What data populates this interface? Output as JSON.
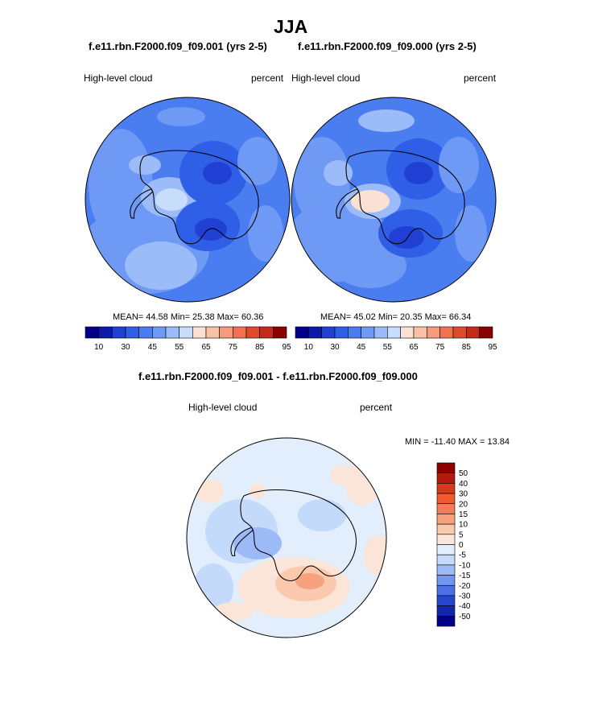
{
  "figure": {
    "title": "JJA"
  },
  "panels": [
    {
      "title": "f.e11.rbn.F2000.f09_f09.001 (yrs 2-5)",
      "field_label": "High-level cloud",
      "unit_label": "percent",
      "stats": "MEAN=  44.58  Min=  25.38  Max=  60.36",
      "colorbar_ticks": [
        "10",
        "30",
        "45",
        "55",
        "65",
        "75",
        "85",
        "95"
      ]
    },
    {
      "title": "f.e11.rbn.F2000.f09_f09.000 (yrs 2-5)",
      "field_label": "High-level cloud",
      "unit_label": "percent",
      "stats": "MEAN=  45.02  Min=  20.35  Max=  66.34",
      "colorbar_ticks": [
        "10",
        "30",
        "45",
        "55",
        "65",
        "75",
        "85",
        "95"
      ]
    }
  ],
  "difference": {
    "title": "f.e11.rbn.F2000.f09_f09.001 - f.e11.rbn.F2000.f09_f09.000",
    "field_label": "High-level cloud",
    "unit_label": "percent",
    "minmax": "MIN = -11.40 MAX =  13.84",
    "colorbar_ticks": [
      "50",
      "40",
      "30",
      "20",
      "15",
      "10",
      "5",
      "0",
      "-5",
      "-10",
      "-15",
      "-20",
      "-30",
      "-40",
      "-50"
    ]
  },
  "colors": {
    "seq": [
      "#00008a",
      "#0c1aab",
      "#1f40d2",
      "#2f5fe6",
      "#4a7df0",
      "#6e9af5",
      "#9bbcf8",
      "#c8dcfb",
      "#fbe1d3",
      "#f8c1a6",
      "#f59a7a",
      "#ef7350",
      "#e04a2c",
      "#c42a17",
      "#8b0000"
    ],
    "div": [
      "#8b0000",
      "#b21a10",
      "#d63a1e",
      "#ef5a30",
      "#f57d55",
      "#f8a17f",
      "#fbcaae",
      "#fbe5d8",
      "#e2eefc",
      "#c4dafa",
      "#9bbaf6",
      "#7196f0",
      "#4a70e4",
      "#2346cc",
      "#0f28aa",
      "#00008a"
    ]
  }
}
